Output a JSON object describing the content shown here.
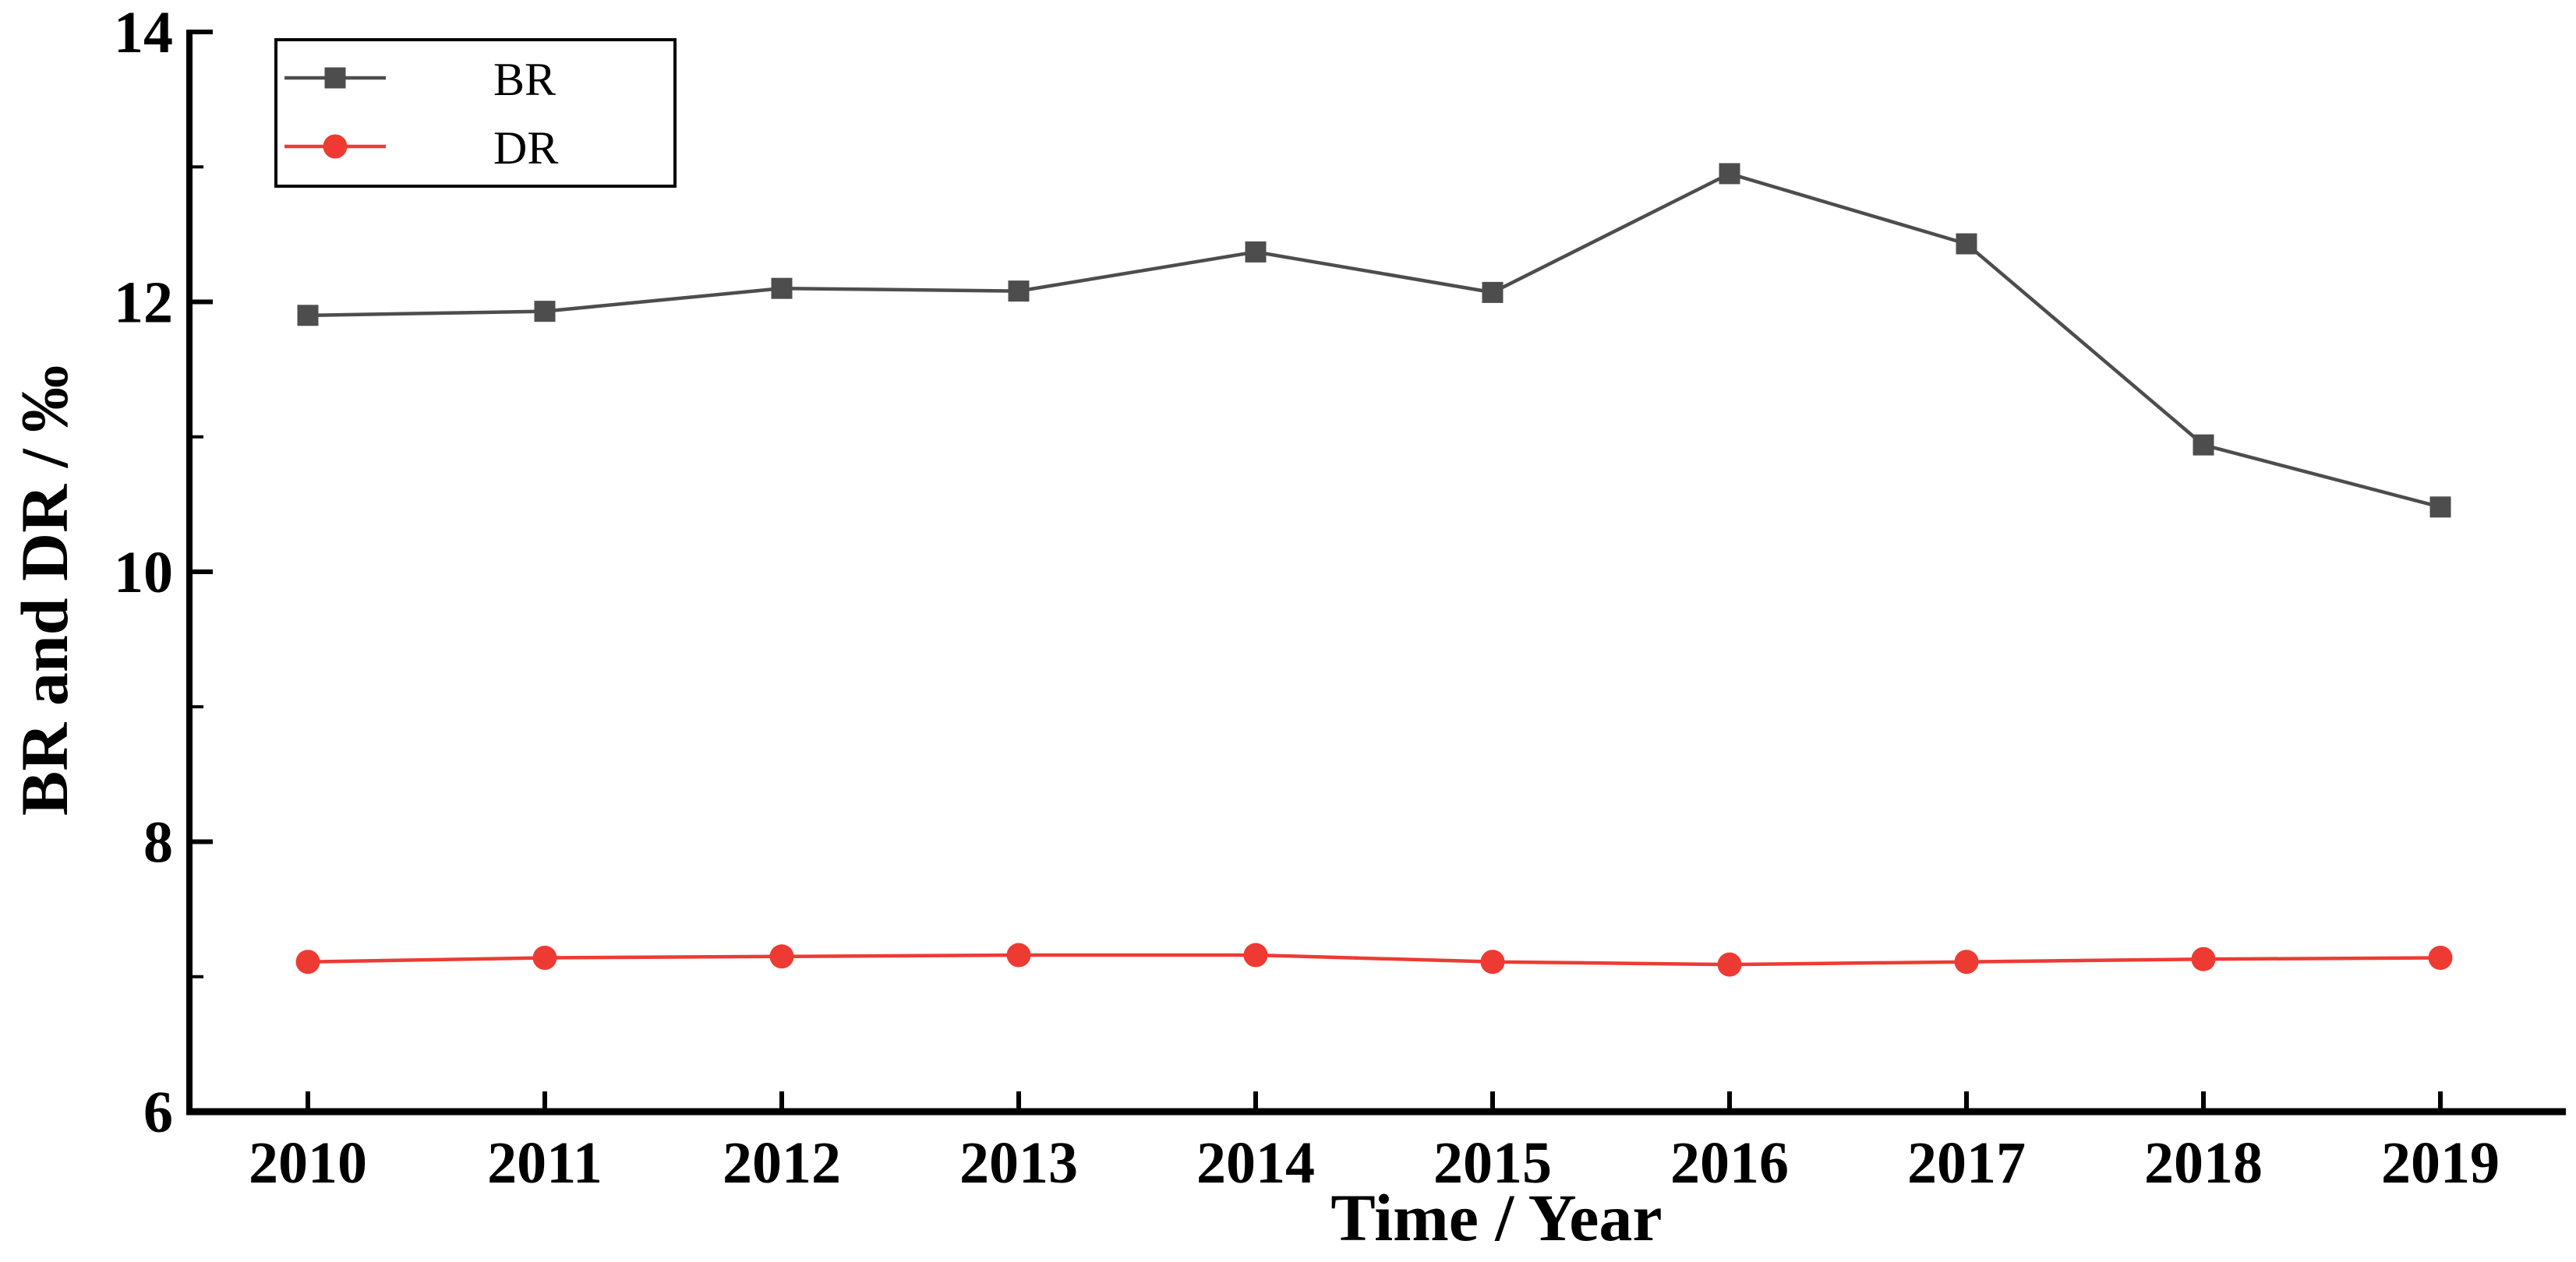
{
  "chart_data": {
    "type": "line",
    "title": "",
    "xlabel": "Time / Year",
    "ylabel": "BR and DR / ‰",
    "x": [
      2010,
      2011,
      2012,
      2013,
      2014,
      2015,
      2016,
      2017,
      2018,
      2019
    ],
    "x_tick_labels": [
      "2010",
      "2011",
      "2012",
      "2013",
      "2014",
      "2015",
      "2016",
      "2017",
      "2018",
      "2019"
    ],
    "series": [
      {
        "name": "BR",
        "marker": "square",
        "color": "#4D4D4D",
        "values": [
          11.9,
          11.93,
          12.1,
          12.08,
          12.37,
          12.07,
          12.95,
          12.43,
          10.94,
          10.48
        ]
      },
      {
        "name": "DR",
        "marker": "circle",
        "color": "#ED3B33",
        "values": [
          7.11,
          7.14,
          7.15,
          7.16,
          7.16,
          7.11,
          7.09,
          7.11,
          7.13,
          7.14
        ]
      }
    ],
    "ylim": [
      6,
      14
    ],
    "yticks_major": [
      6,
      8,
      10,
      12,
      14
    ],
    "y_tick_labels": [
      "6",
      "8",
      "10",
      "12",
      "14"
    ],
    "yticks_minor": [
      7,
      9,
      11,
      13
    ],
    "grid": false,
    "legend_position": "top-left",
    "axis_color": "#000000",
    "background_color": "#FFFFFF"
  }
}
